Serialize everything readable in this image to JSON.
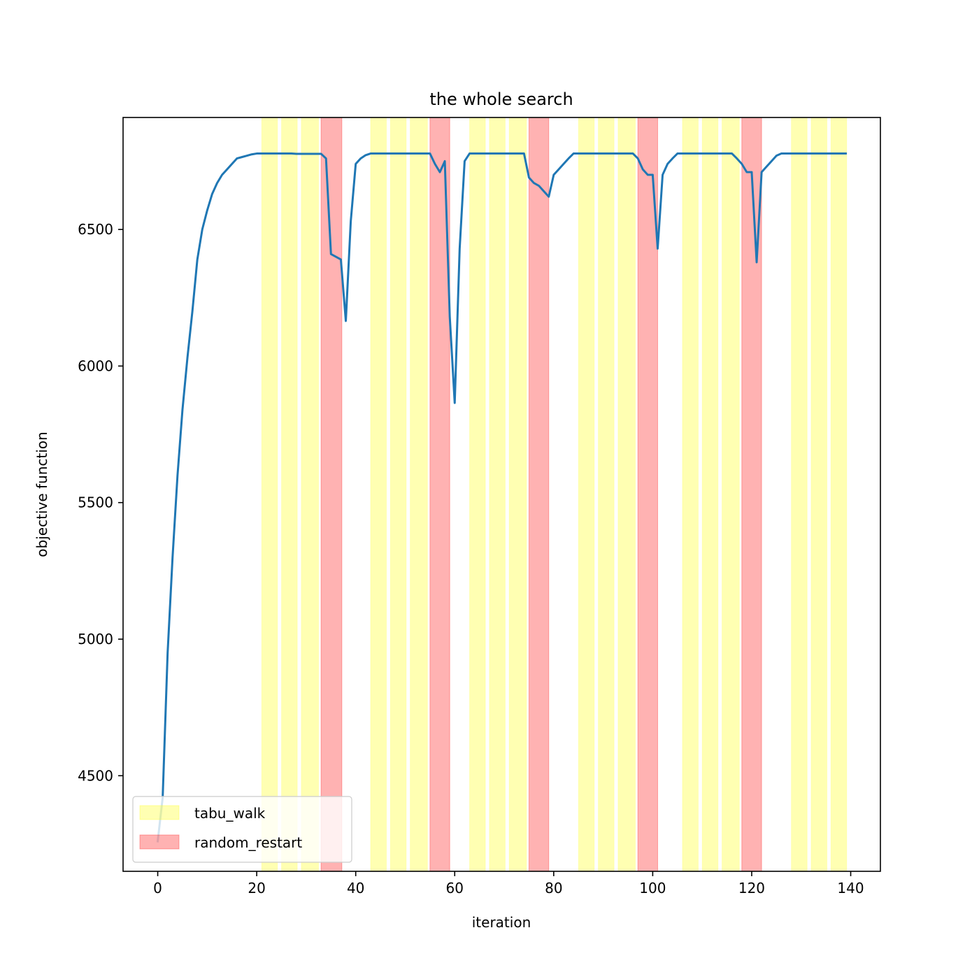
{
  "chart_data": {
    "type": "line",
    "title": "the whole search",
    "xlabel": "iteration",
    "ylabel": "objective function",
    "xlim": [
      -7,
      146
    ],
    "ylim": [
      4150,
      6910
    ],
    "xticks": [
      0,
      20,
      40,
      60,
      80,
      100,
      120,
      140
    ],
    "yticks": [
      4500,
      5000,
      5500,
      6000,
      6500
    ],
    "grid": false,
    "legend_location": "lower-left",
    "series": [
      {
        "color": "#1f77b4",
        "x": [
          0,
          1,
          2,
          3,
          4,
          5,
          6,
          7,
          8,
          9,
          10,
          11,
          12,
          13,
          14,
          15,
          16,
          17,
          18,
          19,
          20,
          21,
          22,
          23,
          24,
          25,
          26,
          27,
          28,
          29,
          30,
          31,
          32,
          33,
          34,
          35,
          36,
          37,
          38,
          39,
          40,
          41,
          42,
          43,
          44,
          45,
          46,
          47,
          48,
          49,
          50,
          51,
          52,
          53,
          54,
          55,
          56,
          57,
          58,
          59,
          60,
          61,
          62,
          63,
          64,
          65,
          66,
          67,
          68,
          69,
          70,
          71,
          72,
          73,
          74,
          75,
          76,
          77,
          78,
          79,
          80,
          81,
          82,
          83,
          84,
          85,
          86,
          87,
          88,
          89,
          90,
          91,
          92,
          93,
          94,
          95,
          96,
          97,
          98,
          99,
          100,
          101,
          102,
          103,
          104,
          105,
          106,
          107,
          108,
          109,
          110,
          111,
          112,
          113,
          114,
          115,
          116,
          117,
          118,
          119,
          120,
          121,
          122,
          123,
          124,
          125,
          126,
          127,
          128,
          129,
          130,
          131,
          132,
          133,
          134,
          135,
          136,
          137,
          138,
          139
        ],
        "y": [
          4260,
          4420,
          4950,
          5300,
          5600,
          5840,
          6030,
          6200,
          6390,
          6500,
          6570,
          6630,
          6670,
          6700,
          6720,
          6740,
          6760,
          6765,
          6770,
          6775,
          6778,
          6778,
          6778,
          6778,
          6778,
          6778,
          6778,
          6778,
          6777,
          6777,
          6777,
          6777,
          6777,
          6777,
          6760,
          6410,
          6400,
          6390,
          6165,
          6530,
          6740,
          6760,
          6772,
          6778,
          6778,
          6778,
          6778,
          6778,
          6778,
          6778,
          6778,
          6778,
          6778,
          6778,
          6778,
          6778,
          6740,
          6710,
          6750,
          6180,
          5865,
          6430,
          6750,
          6778,
          6778,
          6778,
          6778,
          6778,
          6778,
          6778,
          6778,
          6778,
          6778,
          6778,
          6778,
          6690,
          6670,
          6660,
          6640,
          6620,
          6700,
          6720,
          6740,
          6760,
          6778,
          6778,
          6778,
          6778,
          6778,
          6778,
          6778,
          6778,
          6778,
          6778,
          6778,
          6778,
          6778,
          6760,
          6720,
          6700,
          6700,
          6430,
          6700,
          6740,
          6760,
          6778,
          6778,
          6778,
          6778,
          6778,
          6778,
          6778,
          6778,
          6778,
          6778,
          6778,
          6778,
          6760,
          6740,
          6710,
          6710,
          6380,
          6710,
          6730,
          6750,
          6770,
          6778,
          6778,
          6778,
          6778,
          6778,
          6778,
          6778,
          6778,
          6778,
          6778,
          6778,
          6778,
          6778,
          6778
        ]
      }
    ],
    "bands": [
      {
        "kind": "tabu_walk",
        "x0": 21,
        "x1": 24.2
      },
      {
        "kind": "tabu_walk",
        "x0": 25,
        "x1": 28.2
      },
      {
        "kind": "tabu_walk",
        "x0": 29,
        "x1": 32.5
      },
      {
        "kind": "random_restart",
        "x0": 33,
        "x1": 37.2
      },
      {
        "kind": "tabu_walk",
        "x0": 43,
        "x1": 46.2
      },
      {
        "kind": "tabu_walk",
        "x0": 47,
        "x1": 50.2
      },
      {
        "kind": "tabu_walk",
        "x0": 51,
        "x1": 54.5
      },
      {
        "kind": "random_restart",
        "x0": 55,
        "x1": 59
      },
      {
        "kind": "tabu_walk",
        "x0": 63,
        "x1": 66.2
      },
      {
        "kind": "tabu_walk",
        "x0": 67,
        "x1": 70.2
      },
      {
        "kind": "tabu_walk",
        "x0": 71,
        "x1": 74.5
      },
      {
        "kind": "random_restart",
        "x0": 75,
        "x1": 79
      },
      {
        "kind": "tabu_walk",
        "x0": 85,
        "x1": 88.2
      },
      {
        "kind": "tabu_walk",
        "x0": 89,
        "x1": 92.2
      },
      {
        "kind": "tabu_walk",
        "x0": 93,
        "x1": 96.5
      },
      {
        "kind": "random_restart",
        "x0": 97,
        "x1": 101
      },
      {
        "kind": "tabu_walk",
        "x0": 106,
        "x1": 109.2
      },
      {
        "kind": "tabu_walk",
        "x0": 110,
        "x1": 113.2
      },
      {
        "kind": "tabu_walk",
        "x0": 114,
        "x1": 117.5
      },
      {
        "kind": "random_restart",
        "x0": 118,
        "x1": 122
      },
      {
        "kind": "tabu_walk",
        "x0": 128,
        "x1": 131.2
      },
      {
        "kind": "tabu_walk",
        "x0": 132,
        "x1": 135.2
      },
      {
        "kind": "tabu_walk",
        "x0": 136,
        "x1": 139.2
      }
    ],
    "legend": [
      {
        "label": "tabu_walk",
        "color": "#ffff00"
      },
      {
        "label": "random_restart",
        "color": "#ff0000"
      }
    ]
  }
}
